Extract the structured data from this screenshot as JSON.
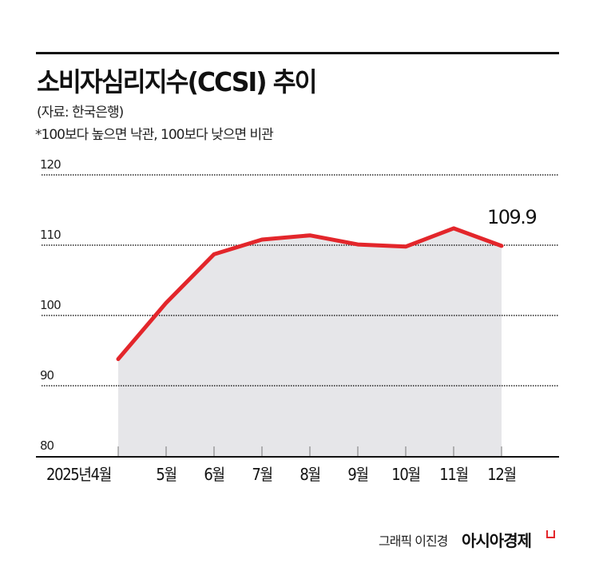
{
  "header": {
    "title": "소비자심리지수(CCSI) 추이",
    "source": "(자료: 한국은행)",
    "note": "*100보다 높으면 낙관, 100보다 낮으면 비관"
  },
  "footer": {
    "credit": "그래픽 이진경",
    "brand": "아시아경제"
  },
  "colors": {
    "line": "#e3262b",
    "fill": "#e6e6e9",
    "grid": "#222222",
    "text": "#111111"
  },
  "chart_data": {
    "type": "area",
    "title": "소비자심리지수(CCSI) 추이",
    "subtitle": "(자료: 한국은행)",
    "annotation": "*100보다 높으면 낙관, 100보다 낮으면 비관",
    "xlabel": "",
    "ylabel": "",
    "x_prefix": "2025년",
    "categories": [
      "4월",
      "5월",
      "6월",
      "7월",
      "8월",
      "9월",
      "10월",
      "11월",
      "12월"
    ],
    "series": [
      {
        "name": "소비자심리지수(CCSI)",
        "values": [
          93.8,
          101.8,
          108.7,
          110.8,
          111.4,
          110.1,
          109.8,
          112.4,
          109.9
        ]
      }
    ],
    "yticks": [
      "80",
      "90",
      "100",
      "110",
      "120"
    ],
    "ylim": [
      80,
      120
    ],
    "grid": "horizontal dotted",
    "legend": "none",
    "end_label": "109.9"
  }
}
